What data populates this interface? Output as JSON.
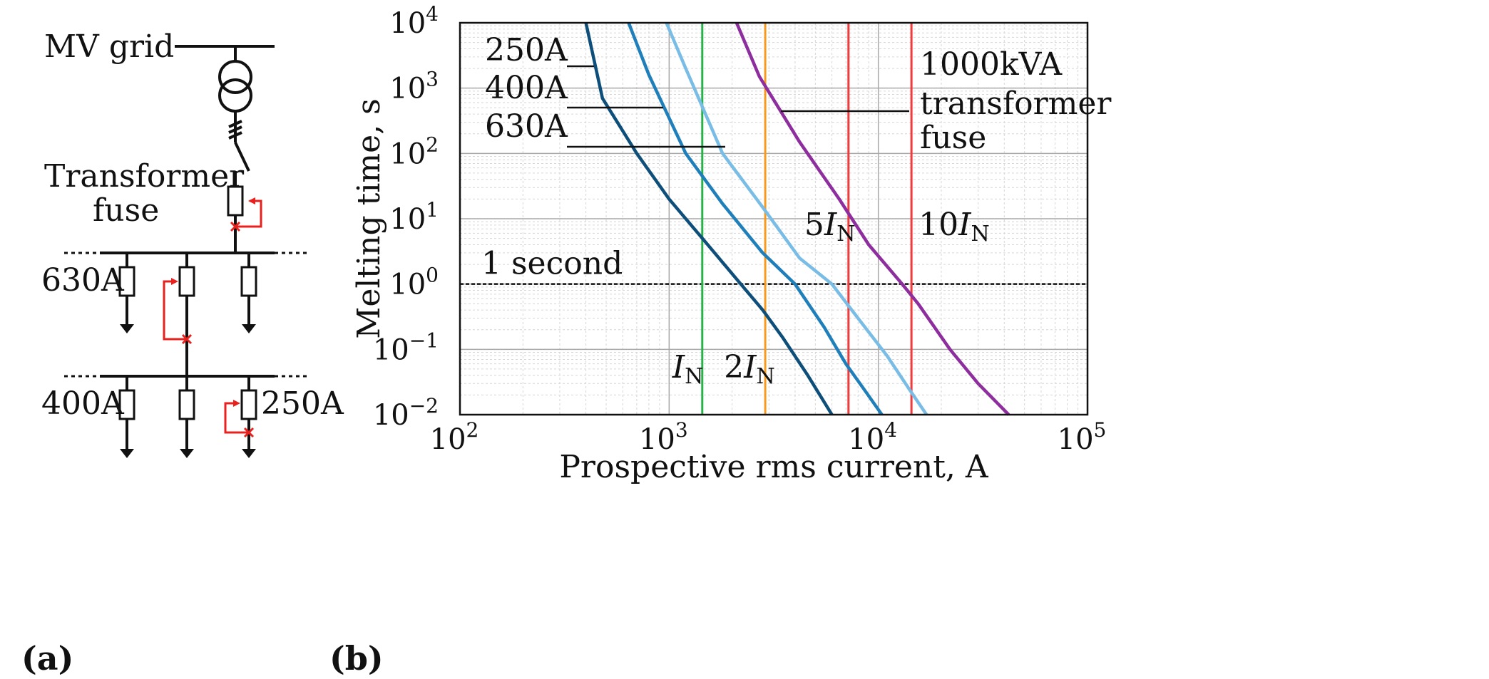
{
  "panel_a": {
    "label": "(a)",
    "mv_grid": "MV grid",
    "transformer_fuse_line1": "Transformer",
    "transformer_fuse_line2": "fuse",
    "fuse_630": "630A",
    "fuse_400": "400A",
    "fuse_250": "250A"
  },
  "panel_b": {
    "label": "(b)"
  },
  "colors": {
    "fuse_250": "#0d4f7a",
    "fuse_400": "#1f7fba",
    "fuse_630": "#79bde6",
    "transformer_fuse": "#8e2d9e",
    "IN": "#27b34a",
    "2IN": "#f79a1e",
    "5IN": "#ef3b3b",
    "10IN": "#ef3b3b",
    "fault_marker": "#e8211e"
  },
  "chart_data": {
    "type": "line",
    "xlabel": "Prospective rms current, A",
    "ylabel": "Melting time, s",
    "x_scale": "log",
    "y_scale": "log",
    "xlim": [
      100,
      100000
    ],
    "ylim": [
      0.01,
      10000
    ],
    "x_ticks": [
      {
        "value": 100,
        "base": "10",
        "exp": "2"
      },
      {
        "value": 1000,
        "base": "10",
        "exp": "3"
      },
      {
        "value": 10000,
        "base": "10",
        "exp": "4"
      },
      {
        "value": 100000,
        "base": "10",
        "exp": "5"
      }
    ],
    "y_ticks": [
      {
        "value": 0.01,
        "base": "10",
        "exp": "−2"
      },
      {
        "value": 0.1,
        "base": "10",
        "exp": "−1"
      },
      {
        "value": 1,
        "base": "10",
        "exp": "0"
      },
      {
        "value": 10,
        "base": "10",
        "exp": "1"
      },
      {
        "value": 100,
        "base": "10",
        "exp": "2"
      },
      {
        "value": 1000,
        "base": "10",
        "exp": "3"
      },
      {
        "value": 10000,
        "base": "10",
        "exp": "4"
      }
    ],
    "grid": true,
    "series": [
      {
        "name": "250A",
        "color_key": "fuse_250",
        "points": [
          [
            400,
            10000
          ],
          [
            480,
            700
          ],
          [
            700,
            100
          ],
          [
            1000,
            20
          ],
          [
            1500,
            4.3
          ],
          [
            2200,
            1
          ],
          [
            2800,
            0.4
          ],
          [
            3500,
            0.15
          ],
          [
            4600,
            0.04
          ],
          [
            6000,
            0.01
          ]
        ]
      },
      {
        "name": "400A",
        "color_key": "fuse_400",
        "points": [
          [
            640,
            10000
          ],
          [
            800,
            1600
          ],
          [
            1200,
            100
          ],
          [
            1800,
            17
          ],
          [
            2800,
            3
          ],
          [
            4000,
            1
          ],
          [
            5500,
            0.22
          ],
          [
            7000,
            0.06
          ],
          [
            8500,
            0.025
          ],
          [
            10400,
            0.01
          ]
        ]
      },
      {
        "name": "630A",
        "color_key": "fuse_630",
        "points": [
          [
            970,
            10000
          ],
          [
            1200,
            2000
          ],
          [
            1800,
            100
          ],
          [
            2800,
            15
          ],
          [
            4200,
            2.5
          ],
          [
            6000,
            1
          ],
          [
            8000,
            0.3
          ],
          [
            11000,
            0.08
          ],
          [
            14000,
            0.025
          ],
          [
            17000,
            0.01
          ]
        ]
      },
      {
        "name": "1000kVA transformer fuse",
        "color_key": "transformer_fuse",
        "points": [
          [
            2100,
            10000
          ],
          [
            2700,
            1500
          ],
          [
            4200,
            150
          ],
          [
            6500,
            20
          ],
          [
            9000,
            4
          ],
          [
            13000,
            1
          ],
          [
            15500,
            0.5
          ],
          [
            22000,
            0.1
          ],
          [
            30000,
            0.03
          ],
          [
            42000,
            0.01
          ]
        ]
      }
    ],
    "reference_lines": [
      {
        "label_main": "I",
        "label_sub": "N",
        "label_prefix": "",
        "x": 1440,
        "color_key": "IN"
      },
      {
        "label_main": "I",
        "label_sub": "N",
        "label_prefix": "2",
        "x": 2880,
        "color_key": "2IN"
      },
      {
        "label_main": "I",
        "label_sub": "N",
        "label_prefix": "5",
        "x": 7200,
        "color_key": "5IN"
      },
      {
        "label_main": "I",
        "label_sub": "N",
        "label_prefix": "10",
        "x": 14400,
        "color_key": "10IN"
      }
    ],
    "hline": {
      "y": 1,
      "label": "1 second"
    },
    "annotations": {
      "fuse_250": "250A",
      "fuse_400": "400A",
      "fuse_630": "630A",
      "transformer_line1": "1000kVA",
      "transformer_line2": "transformer",
      "transformer_line3": "fuse"
    }
  }
}
